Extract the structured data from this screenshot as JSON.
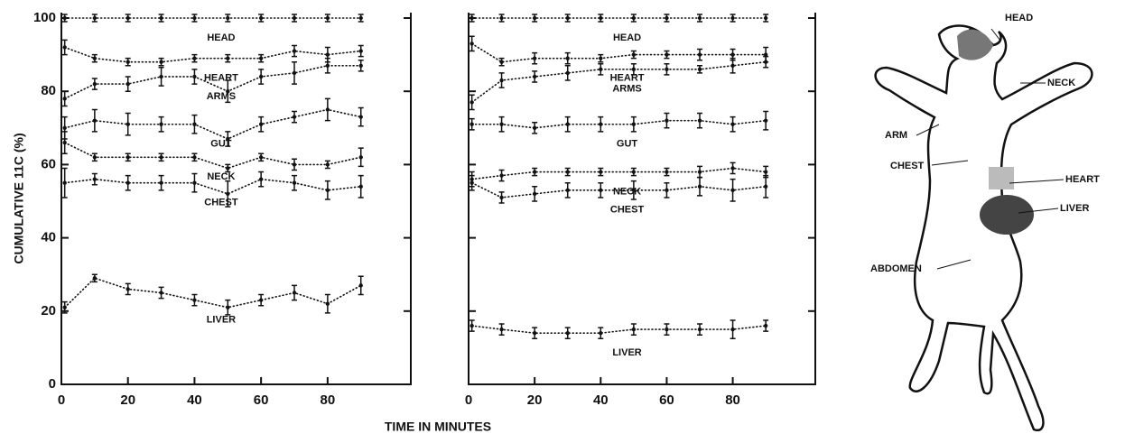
{
  "figure": {
    "x_label": "TIME IN MINUTES",
    "y_label": "CUMULATIVE 11C (%)"
  },
  "chart_data": [
    {
      "type": "errorbar",
      "color": "#111",
      "xlim": [
        0,
        105
      ],
      "ylim": [
        0,
        100
      ],
      "xticks": [
        0,
        20,
        40,
        60,
        80
      ],
      "yticks": [
        0,
        20,
        40,
        60,
        80,
        100
      ],
      "x": [
        1,
        10,
        20,
        30,
        40,
        50,
        60,
        70,
        80,
        90
      ],
      "series": [
        {
          "name": "HEAD",
          "values": [
            100,
            100,
            100,
            100,
            100,
            100,
            100,
            100,
            100,
            100
          ],
          "errors": [
            1,
            1,
            1,
            1,
            1,
            1,
            1,
            1,
            1,
            1
          ]
        },
        {
          "name": "HEART",
          "values": [
            92,
            89,
            88,
            88,
            89,
            89,
            89,
            91,
            90,
            91
          ],
          "errors": [
            2,
            1,
            1,
            1,
            1,
            1,
            1,
            1.5,
            2,
            1.5
          ]
        },
        {
          "name": "ARMS",
          "values": [
            78,
            82,
            82,
            84,
            84,
            80,
            84,
            85,
            87,
            87
          ],
          "errors": [
            2,
            1.5,
            2,
            2.5,
            2,
            3,
            2,
            3,
            2,
            1.5
          ]
        },
        {
          "name": "GUT",
          "values": [
            70,
            72,
            71,
            71,
            71,
            67,
            71,
            73,
            75,
            73
          ],
          "errors": [
            3,
            3,
            3,
            2,
            2.5,
            2,
            2,
            1.5,
            3,
            2.5
          ]
        },
        {
          "name": "NECK",
          "values": [
            66,
            62,
            62,
            62,
            62,
            59,
            62,
            60,
            60,
            62
          ],
          "errors": [
            3,
            1,
            1,
            1,
            1,
            1,
            1,
            1.5,
            1,
            2.5
          ]
        },
        {
          "name": "CHEST",
          "values": [
            55,
            56,
            55,
            55,
            55,
            52,
            56,
            55,
            53,
            54
          ],
          "errors": [
            4,
            1.5,
            2,
            2,
            2.5,
            3.5,
            2,
            2,
            2.5,
            3
          ]
        },
        {
          "name": "LIVER",
          "values": [
            21,
            29,
            26,
            25,
            23,
            21,
            23,
            25,
            22,
            27
          ],
          "errors": [
            1.5,
            1,
            1.5,
            1.5,
            1.5,
            2,
            1.5,
            2,
            2.5,
            2.5
          ]
        }
      ]
    },
    {
      "type": "errorbar",
      "color": "#111",
      "xlim": [
        0,
        105
      ],
      "ylim": [
        0,
        100
      ],
      "xticks": [
        0,
        20,
        40,
        60,
        80
      ],
      "yticks": [
        0,
        20,
        40,
        60,
        80,
        100
      ],
      "x": [
        1,
        10,
        20,
        30,
        40,
        50,
        60,
        70,
        80,
        90
      ],
      "series": [
        {
          "name": "HEAD",
          "values": [
            100,
            100,
            100,
            100,
            100,
            100,
            100,
            100,
            100,
            100
          ],
          "errors": [
            1,
            1,
            1,
            1,
            1,
            1,
            1,
            1,
            1,
            1
          ]
        },
        {
          "name": "HEART",
          "values": [
            93,
            88,
            89,
            89,
            89,
            90,
            90,
            90,
            90,
            90
          ],
          "errors": [
            2,
            1,
            1.5,
            1.5,
            1,
            1,
            1,
            1.5,
            1.5,
            2
          ]
        },
        {
          "name": "ARMS",
          "values": [
            77,
            83,
            84,
            85,
            86,
            86,
            86,
            86,
            87,
            88
          ],
          "errors": [
            2,
            2,
            1.5,
            2,
            1.5,
            1.5,
            1.5,
            1,
            2,
            1.5
          ]
        },
        {
          "name": "GUT",
          "values": [
            71,
            71,
            70,
            71,
            71,
            71,
            72,
            72,
            71,
            72
          ],
          "errors": [
            1.5,
            2,
            1.5,
            2,
            2,
            2,
            2,
            2,
            2,
            2.5
          ]
        },
        {
          "name": "NECK",
          "values": [
            56,
            57,
            58,
            58,
            58,
            58,
            58,
            58,
            59,
            58
          ],
          "errors": [
            2,
            1.5,
            1,
            1,
            1,
            1,
            1,
            1.5,
            1.5,
            1.5
          ]
        },
        {
          "name": "CHEST",
          "values": [
            55,
            51,
            52,
            53,
            53,
            53,
            53,
            54,
            53,
            54
          ],
          "errors": [
            2,
            1.5,
            2,
            2,
            2,
            2.5,
            2,
            2.5,
            3,
            3
          ]
        },
        {
          "name": "LIVER",
          "values": [
            16,
            15,
            14,
            14,
            14,
            15,
            15,
            15,
            15,
            16
          ],
          "errors": [
            1.5,
            1.5,
            1.5,
            1.5,
            1.5,
            1.5,
            1.5,
            1.5,
            2.5,
            1.5
          ]
        }
      ]
    }
  ],
  "diagram": {
    "labels": [
      "HEAD",
      "NECK",
      "ARM",
      "CHEST",
      "HEART",
      "LIVER",
      "ABDOMEN"
    ]
  }
}
